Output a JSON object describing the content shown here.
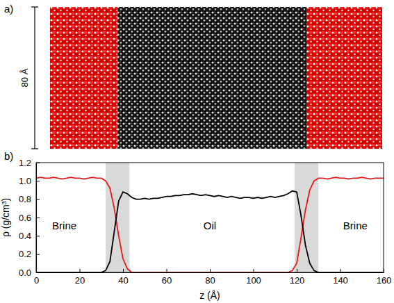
{
  "panel_a": {
    "label": "a)",
    "scale_label": "80 Å"
  },
  "chart_data": {
    "type": "line",
    "label": "b)",
    "xlabel": "z (Å)",
    "ylabel": "ρ (g/cm³)",
    "xlim": [
      0,
      160
    ],
    "ylim": [
      0,
      1.2
    ],
    "xticks": [
      0,
      20,
      40,
      60,
      80,
      100,
      120,
      140,
      160
    ],
    "yticks": [
      {
        "value": 0,
        "label": "0.0"
      },
      0.2,
      0.4,
      0.6,
      0.8,
      {
        "value": 1,
        "label": "1.0"
      },
      1.2
    ],
    "interfaces": [
      [
        32,
        43
      ],
      [
        119,
        130
      ]
    ],
    "annotations": [
      {
        "text": "Brine",
        "x": 13,
        "y": 0.5
      },
      {
        "text": "Oil",
        "x": 80,
        "y": 0.5
      },
      {
        "text": "Brine",
        "x": 147,
        "y": 0.5
      }
    ],
    "x": [
      0,
      2,
      4,
      6,
      8,
      10,
      12,
      14,
      16,
      18,
      20,
      22,
      24,
      26,
      28,
      30,
      32,
      34,
      36,
      38,
      40,
      42,
      44,
      46,
      48,
      50,
      52,
      54,
      56,
      58,
      60,
      62,
      64,
      66,
      68,
      70,
      72,
      74,
      76,
      78,
      80,
      82,
      84,
      86,
      88,
      90,
      92,
      94,
      96,
      98,
      100,
      102,
      104,
      106,
      108,
      110,
      112,
      114,
      116,
      118,
      120,
      122,
      124,
      126,
      128,
      130,
      132,
      134,
      136,
      138,
      140,
      142,
      144,
      146,
      148,
      150,
      152,
      154,
      156,
      158,
      160
    ],
    "series": [
      {
        "color": "#e31a1c",
        "values": [
          1.03,
          1.04,
          1.03,
          1.03,
          1.04,
          1.03,
          1.02,
          1.03,
          1.04,
          1.03,
          1.03,
          1.02,
          1.03,
          1.04,
          1.03,
          1.03,
          1.0,
          0.92,
          0.7,
          0.4,
          0.15,
          0.04,
          0,
          0,
          0,
          0,
          0,
          0,
          0,
          0,
          0,
          0,
          0,
          0,
          0,
          0,
          0,
          0,
          0,
          0,
          0,
          0,
          0,
          0,
          0,
          0,
          0,
          0,
          0,
          0,
          0,
          0,
          0,
          0,
          0,
          0,
          0,
          0,
          0,
          0.02,
          0.1,
          0.38,
          0.68,
          0.9,
          1.0,
          1.03,
          1.03,
          1.02,
          1.03,
          1.04,
          1.03,
          1.03,
          1.02,
          1.03,
          1.03,
          1.04,
          1.03,
          1.02,
          1.03,
          1.03,
          1.03
        ]
      },
      {
        "color": "#000000",
        "values": [
          0,
          0,
          0,
          0,
          0,
          0,
          0,
          0,
          0,
          0,
          0,
          0,
          0,
          0,
          0,
          0,
          0.02,
          0.12,
          0.45,
          0.78,
          0.88,
          0.86,
          0.82,
          0.8,
          0.8,
          0.81,
          0.8,
          0.81,
          0.81,
          0.82,
          0.83,
          0.83,
          0.84,
          0.84,
          0.85,
          0.85,
          0.86,
          0.85,
          0.84,
          0.85,
          0.84,
          0.83,
          0.84,
          0.83,
          0.82,
          0.83,
          0.82,
          0.81,
          0.82,
          0.82,
          0.81,
          0.82,
          0.81,
          0.82,
          0.83,
          0.82,
          0.83,
          0.84,
          0.86,
          0.89,
          0.88,
          0.62,
          0.3,
          0.1,
          0.02,
          0,
          0,
          0,
          0,
          0,
          0,
          0,
          0,
          0,
          0,
          0,
          0,
          0,
          0,
          0,
          0
        ]
      }
    ]
  }
}
